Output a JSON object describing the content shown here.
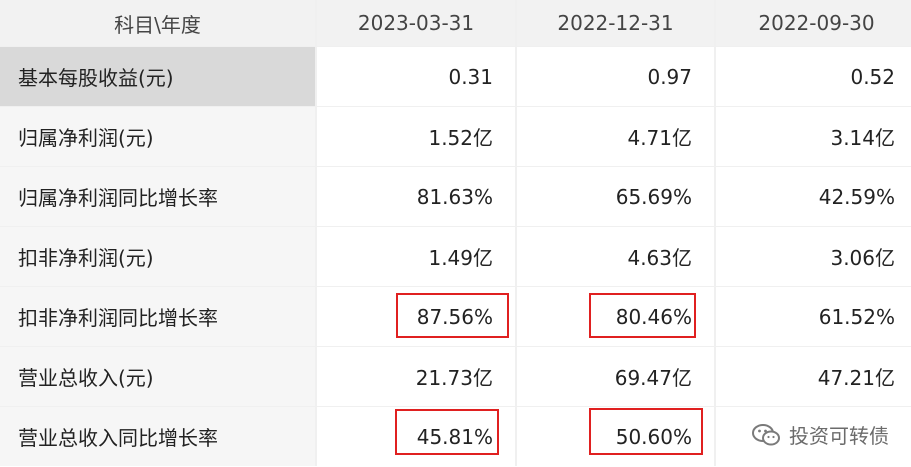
{
  "columns": [
    "科目\\年度",
    "2023-03-31",
    "2022-12-31",
    "2022-09-30"
  ],
  "rows": [
    {
      "label": "基本每股收益(元)",
      "values": [
        "0.31",
        "0.97",
        "0.52"
      ],
      "selected": true
    },
    {
      "label": "归属净利润(元)",
      "values": [
        "1.52亿",
        "4.71亿",
        "3.14亿"
      ]
    },
    {
      "label": "归属净利润同比增长率",
      "values": [
        "81.63%",
        "65.69%",
        "42.59%"
      ]
    },
    {
      "label": "扣非净利润(元)",
      "values": [
        "1.49亿",
        "4.63亿",
        "3.06亿"
      ]
    },
    {
      "label": "扣非净利润同比增长率",
      "values": [
        "87.56%",
        "80.46%",
        "61.52%"
      ],
      "highlighted": [
        0,
        1
      ]
    },
    {
      "label": "营业总收入(元)",
      "values": [
        "21.73亿",
        "69.47亿",
        "47.21亿"
      ]
    },
    {
      "label": "营业总收入同比增长率",
      "values": [
        "45.81%",
        "50.60%",
        ""
      ],
      "highlighted": [
        0,
        1
      ]
    }
  ],
  "watermark": {
    "icon": "wechat-icon",
    "text": "投资可转债"
  },
  "colors": {
    "highlight": "#e02020",
    "header_bg": "#f2f2f2",
    "selected_bg": "#d9d9d9"
  }
}
